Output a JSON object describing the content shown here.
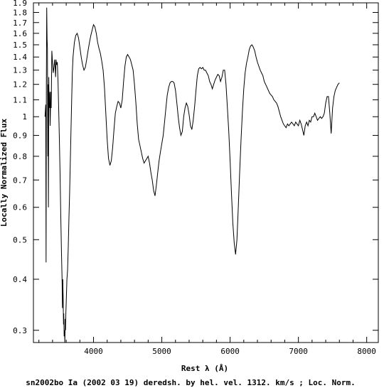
{
  "chart_data": {
    "type": "line",
    "title": "",
    "xlabel": "Rest λ (Å)",
    "ylabel": "Locally Normalized Flux",
    "caption": "sn2002bo Ia (2002 03 19) deredsh. by hel. vel.  1312. km/s ;  Loc. Norm.",
    "xlim": [
      3120,
      8170
    ],
    "ylim": [
      0.28,
      1.9
    ],
    "yscale": "log",
    "grid": false,
    "x_ticks": [
      {
        "value": 4000,
        "label": "4000"
      },
      {
        "value": 5000,
        "label": "5000"
      },
      {
        "value": 6000,
        "label": "6000"
      },
      {
        "value": 7000,
        "label": "7000"
      },
      {
        "value": 8000,
        "label": "8000"
      }
    ],
    "y_ticks": [
      {
        "value": 0.3,
        "label": "0.3"
      },
      {
        "value": 0.4,
        "label": "0.4"
      },
      {
        "value": 0.5,
        "label": "0.5"
      },
      {
        "value": 0.6,
        "label": "0.6"
      },
      {
        "value": 0.7,
        "label": "0.7"
      },
      {
        "value": 0.8,
        "label": "0.8"
      },
      {
        "value": 0.9,
        "label": "0.9"
      },
      {
        "value": 1.0,
        "label": "1"
      },
      {
        "value": 1.1,
        "label": "1.1"
      },
      {
        "value": 1.2,
        "label": "1.2"
      },
      {
        "value": 1.3,
        "label": "1.3"
      },
      {
        "value": 1.4,
        "label": "1.4"
      },
      {
        "value": 1.5,
        "label": "1.5"
      },
      {
        "value": 1.6,
        "label": "1.6"
      },
      {
        "value": 1.7,
        "label": "1.7"
      },
      {
        "value": 1.8,
        "label": "1.8"
      },
      {
        "value": 1.9,
        "label": "1.9"
      }
    ],
    "x_minor_step": 200,
    "series": [
      {
        "color": "#000000",
        "x": [
          3290,
          3300,
          3305,
          3310,
          3315,
          3320,
          3325,
          3330,
          3335,
          3340,
          3345,
          3350,
          3360,
          3365,
          3375,
          3380,
          3390,
          3400,
          3410,
          3420,
          3430,
          3440,
          3445,
          3450,
          3460,
          3470,
          3480,
          3490,
          3500,
          3510,
          3520,
          3530,
          3540,
          3545,
          3550,
          3555,
          3560,
          3565,
          3570,
          3575,
          3580,
          3585,
          3590,
          3595,
          3600,
          3610,
          3620,
          3630,
          3640,
          3650,
          3660,
          3670,
          3680,
          3690,
          3700,
          3720,
          3740,
          3760,
          3780,
          3800,
          3820,
          3840,
          3860,
          3880,
          3900,
          3920,
          3940,
          3960,
          3980,
          4000,
          4020,
          4040,
          4060,
          4080,
          4100,
          4120,
          4140,
          4160,
          4180,
          4200,
          4220,
          4240,
          4260,
          4280,
          4300,
          4320,
          4340,
          4360,
          4380,
          4400,
          4420,
          4440,
          4460,
          4480,
          4500,
          4520,
          4540,
          4560,
          4580,
          4600,
          4620,
          4640,
          4660,
          4680,
          4700,
          4720,
          4740,
          4760,
          4780,
          4800,
          4820,
          4840,
          4860,
          4880,
          4900,
          4920,
          4940,
          4960,
          4980,
          5000,
          5020,
          5040,
          5060,
          5080,
          5100,
          5120,
          5140,
          5160,
          5180,
          5200,
          5220,
          5240,
          5260,
          5280,
          5300,
          5320,
          5340,
          5360,
          5380,
          5400,
          5420,
          5440,
          5460,
          5480,
          5500,
          5520,
          5540,
          5560,
          5580,
          5600,
          5620,
          5640,
          5660,
          5680,
          5700,
          5720,
          5740,
          5760,
          5780,
          5800,
          5820,
          5840,
          5860,
          5880,
          5900,
          5920,
          5940,
          5960,
          5980,
          6000,
          6020,
          6040,
          6060,
          6080,
          6100,
          6120,
          6140,
          6160,
          6180,
          6200,
          6220,
          6240,
          6260,
          6280,
          6300,
          6320,
          6340,
          6360,
          6380,
          6400,
          6420,
          6440,
          6460,
          6480,
          6500,
          6520,
          6540,
          6560,
          6580,
          6600,
          6620,
          6640,
          6660,
          6680,
          6700,
          6720,
          6740,
          6760,
          6780,
          6800,
          6820,
          6840,
          6860,
          6880,
          6900,
          6920,
          6940,
          6960,
          6980,
          7000,
          7020,
          7040,
          7060,
          7080,
          7100,
          7120,
          7140,
          7160,
          7180,
          7200,
          7220,
          7240,
          7260,
          7280,
          7300,
          7320,
          7340,
          7360,
          7380,
          7400,
          7420,
          7440,
          7460,
          7480,
          7500,
          7520,
          7540,
          7560,
          7580,
          7600
        ],
        "y": [
          1.0,
          1.07,
          0.44,
          1.2,
          1.85,
          1.55,
          1.47,
          0.8,
          1.2,
          0.6,
          1.25,
          1.05,
          1.15,
          0.95,
          1.15,
          1.05,
          1.45,
          1.35,
          1.28,
          1.32,
          1.38,
          1.3,
          1.25,
          1.38,
          1.34,
          1.36,
          1.22,
          1.05,
          0.88,
          0.72,
          0.58,
          0.47,
          0.4,
          0.34,
          0.4,
          0.36,
          0.31,
          0.33,
          0.29,
          0.3,
          0.28,
          0.32,
          0.3,
          0.33,
          0.35,
          0.4,
          0.42,
          0.48,
          0.56,
          0.65,
          0.78,
          0.92,
          1.1,
          1.28,
          1.4,
          1.52,
          1.58,
          1.6,
          1.56,
          1.48,
          1.4,
          1.34,
          1.3,
          1.32,
          1.38,
          1.45,
          1.52,
          1.58,
          1.63,
          1.68,
          1.66,
          1.6,
          1.52,
          1.47,
          1.43,
          1.37,
          1.3,
          1.18,
          1.02,
          0.88,
          0.79,
          0.76,
          0.78,
          0.84,
          0.93,
          1.02,
          1.06,
          1.09,
          1.08,
          1.05,
          1.1,
          1.22,
          1.33,
          1.4,
          1.42,
          1.4,
          1.38,
          1.34,
          1.3,
          1.2,
          1.08,
          0.96,
          0.88,
          0.85,
          0.82,
          0.79,
          0.77,
          0.78,
          0.79,
          0.8,
          0.77,
          0.73,
          0.7,
          0.66,
          0.64,
          0.68,
          0.73,
          0.78,
          0.82,
          0.86,
          0.9,
          0.97,
          1.05,
          1.13,
          1.18,
          1.21,
          1.22,
          1.22,
          1.21,
          1.16,
          1.08,
          1.0,
          0.94,
          0.9,
          0.92,
          1.0,
          1.05,
          1.08,
          1.06,
          1.01,
          0.95,
          0.93,
          0.98,
          1.06,
          1.16,
          1.26,
          1.31,
          1.32,
          1.31,
          1.32,
          1.3,
          1.3,
          1.28,
          1.26,
          1.22,
          1.2,
          1.17,
          1.2,
          1.23,
          1.25,
          1.27,
          1.26,
          1.22,
          1.25,
          1.3,
          1.3,
          1.2,
          1.05,
          0.92,
          0.78,
          0.65,
          0.55,
          0.49,
          0.46,
          0.5,
          0.6,
          0.73,
          0.88,
          1.03,
          1.17,
          1.28,
          1.35,
          1.4,
          1.46,
          1.49,
          1.5,
          1.48,
          1.45,
          1.4,
          1.36,
          1.33,
          1.3,
          1.28,
          1.26,
          1.22,
          1.2,
          1.18,
          1.16,
          1.14,
          1.13,
          1.12,
          1.1,
          1.09,
          1.08,
          1.06,
          1.03,
          1.0,
          0.98,
          0.96,
          0.95,
          0.94,
          0.96,
          0.95,
          0.96,
          0.97,
          0.96,
          0.95,
          0.97,
          0.96,
          0.95,
          0.98,
          0.96,
          0.93,
          0.9,
          0.95,
          0.97,
          0.95,
          0.98,
          0.97,
          1.0,
          1.0,
          1.02,
          1.0,
          0.98,
          0.99,
          1.0,
          0.99,
          1.0,
          1.02,
          1.08,
          1.12,
          1.12,
          1.02,
          0.91,
          1.05,
          1.12,
          1.16,
          1.18,
          1.2,
          1.21
        ]
      }
    ]
  }
}
